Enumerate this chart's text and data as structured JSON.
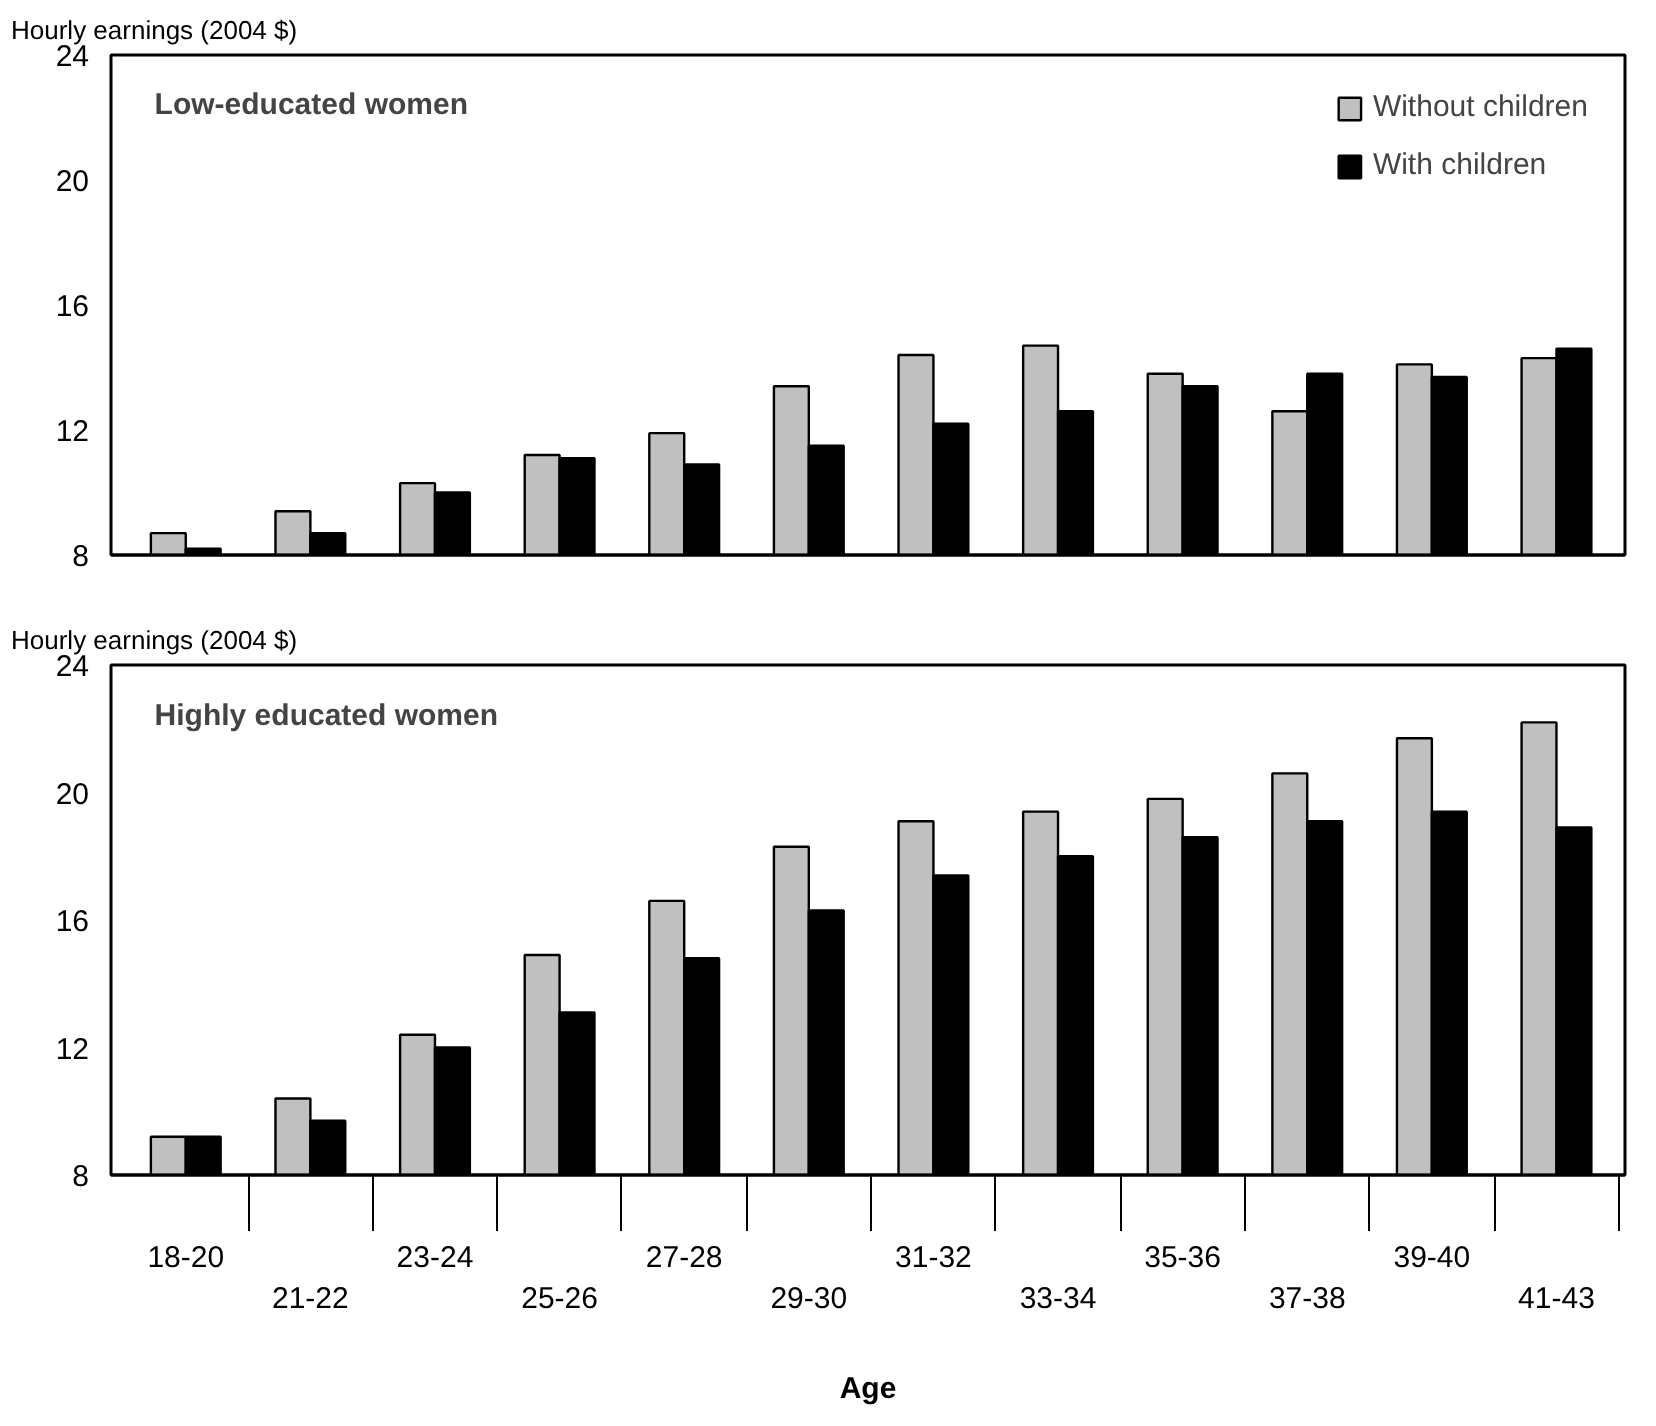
{
  "chart_data": [
    {
      "type": "bar",
      "title": "Low-educated women",
      "ylabel": "Hourly earnings (2004 $)",
      "categories": [
        null,
        null,
        null,
        null,
        null,
        null,
        null,
        null,
        null,
        null,
        null,
        null
      ],
      "ylim": [
        8,
        24
      ],
      "yticks": [
        8,
        12,
        16,
        20,
        24
      ],
      "grid": false,
      "legend": "top right",
      "tick_labels": "y",
      "series": [
        {
          "name": "Without children",
          "color": "#c0c0c0",
          "values": [
            8.7,
            9.4,
            10.3,
            11.2,
            11.9,
            13.4,
            14.4,
            14.7,
            13.8,
            12.6,
            14.1,
            14.3
          ]
        },
        {
          "name": "With children",
          "color": "#000000",
          "values": [
            8.2,
            8.7,
            10.0,
            11.1,
            10.9,
            11.5,
            12.2,
            12.6,
            13.4,
            13.8,
            13.7,
            14.6
          ]
        }
      ]
    },
    {
      "type": "bar",
      "title": "Highly educated women",
      "ylabel": "Hourly earnings (2004 $)",
      "xlabel": "Age",
      "categories": [
        "18-20",
        "21-22",
        "23-24",
        "25-26",
        "27-28",
        "29-30",
        "31-32",
        "33-34",
        "35-36",
        "37-38",
        "39-40",
        "41-43"
      ],
      "ylim": [
        8,
        24
      ],
      "yticks": [
        8,
        12,
        16,
        20,
        24
      ],
      "grid": false,
      "legend": false,
      "series": [
        {
          "color": "#c0c0c0",
          "values": [
            9.2,
            10.4,
            12.4,
            14.9,
            16.6,
            18.3,
            19.1,
            19.4,
            19.8,
            20.6,
            21.7,
            22.2
          ]
        },
        {
          "color": "#000000",
          "values": [
            9.2,
            9.7,
            12.0,
            13.1,
            14.8,
            16.3,
            17.4,
            18.0,
            18.6,
            19.1,
            19.4,
            18.9
          ]
        }
      ]
    }
  ]
}
